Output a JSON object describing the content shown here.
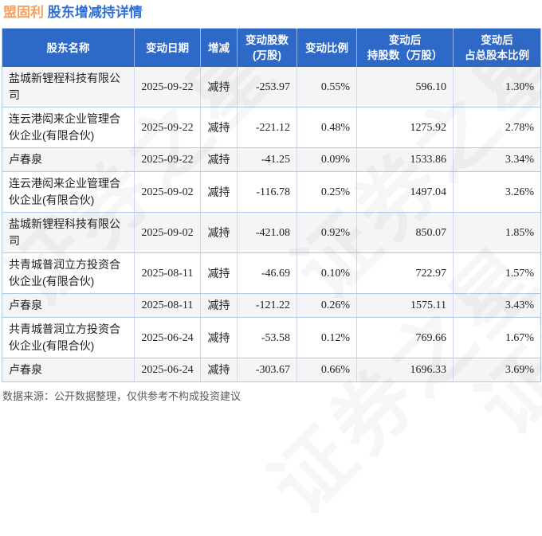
{
  "page": {
    "title_stock": "盟固利",
    "title_text": "股东增减持详情"
  },
  "watermark": "证券之星",
  "footer": {
    "source_note": "数据来源：公开数据整理，仅供参考不构成投资建议"
  },
  "colors": {
    "header_bg": "#2e69c8",
    "title_stock_orange": "#f99e61",
    "title_blue": "#3170d2",
    "decrease_green": "#1ba24b",
    "row_alt_bg": "#f5f5f6",
    "grid_line": "#aecbe9"
  },
  "chart_data": {
    "type": "table",
    "title": "盟固利 股东增减持详情",
    "columns": [
      "股东名称",
      "变动日期",
      "增减",
      "变动股数\n(万股)",
      "变动比例",
      "变动后\n持股数（万股）",
      "变动后\n占总股本比例"
    ],
    "rows": [
      [
        "盐城新锂程科技有限公司",
        "2025-09-22",
        "减持",
        "-253.97",
        "0.55%",
        "596.10",
        "1.30%"
      ],
      [
        "连云港闳来企业管理合伙企业(有限合伙)",
        "2025-09-22",
        "减持",
        "-221.12",
        "0.48%",
        "1275.92",
        "2.78%"
      ],
      [
        "卢春泉",
        "2025-09-22",
        "减持",
        "-41.25",
        "0.09%",
        "1533.86",
        "3.34%"
      ],
      [
        "连云港闳来企业管理合伙企业(有限合伙)",
        "2025-09-02",
        "减持",
        "-116.78",
        "0.25%",
        "1497.04",
        "3.26%"
      ],
      [
        "盐城新锂程科技有限公司",
        "2025-09-02",
        "减持",
        "-421.08",
        "0.92%",
        "850.07",
        "1.85%"
      ],
      [
        "共青城普润立方投资合伙企业(有限合伙)",
        "2025-08-11",
        "减持",
        "-46.69",
        "0.10%",
        "722.97",
        "1.57%"
      ],
      [
        "卢春泉",
        "2025-08-11",
        "减持",
        "-121.22",
        "0.26%",
        "1575.11",
        "3.43%"
      ],
      [
        "共青城普润立方投资合伙企业(有限合伙)",
        "2025-06-24",
        "减持",
        "-53.58",
        "0.12%",
        "769.66",
        "1.67%"
      ],
      [
        "卢春泉",
        "2025-06-24",
        "减持",
        "-303.67",
        "0.66%",
        "1696.33",
        "3.69%"
      ]
    ]
  }
}
